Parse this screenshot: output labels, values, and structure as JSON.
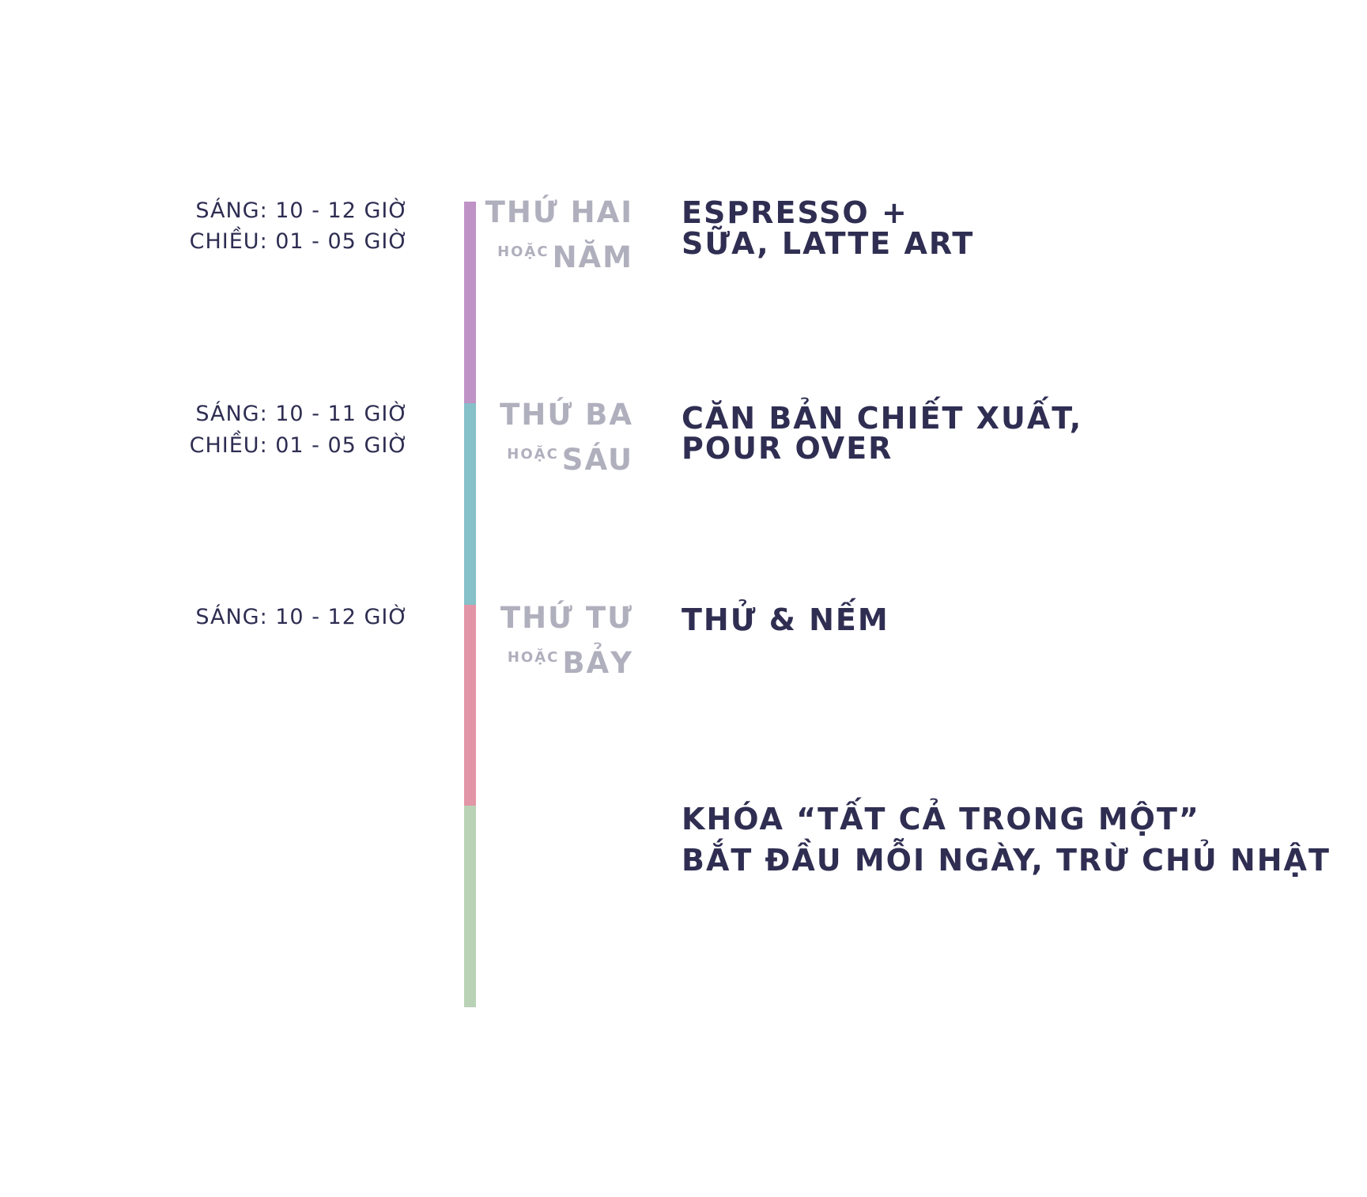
{
  "schedule": [
    {
      "times": [
        "SÁNG: 10 - 12 GIỜ",
        "CHIỀU:  01 - 05 GIỜ"
      ],
      "day": "THỨ HAI",
      "or": "HOẶC",
      "alt_day": "NĂM",
      "course": [
        "ESPRESSO +",
        "SỮA, LATTE ART"
      ]
    },
    {
      "times": [
        "SÁNG: 10 - 11 GIỜ",
        "CHIỀU: 01 - 05 GIỜ"
      ],
      "day": "THỨ BA",
      "or": "HOẶC",
      "alt_day": "SÁU",
      "course": [
        "CĂN BẢN CHIẾT XUẤT,",
        "POUR OVER"
      ]
    },
    {
      "times": [
        "SÁNG: 10 - 12 GIỜ"
      ],
      "day": "THỨ TƯ",
      "or": "HOẶC",
      "alt_day": "BẢY",
      "course": [
        "THỬ & NẾM"
      ]
    },
    {
      "course": [
        "KHÓA “TẤT CẢ TRONG MỘT”",
        "BẮT ĐẦU MỖI NGÀY, TRỪ CHỦ NHẬT"
      ]
    }
  ]
}
